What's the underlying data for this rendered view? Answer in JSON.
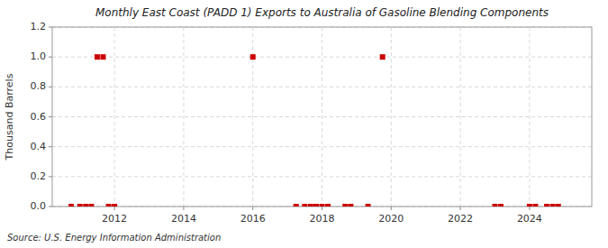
{
  "chart_data": {
    "type": "scatter",
    "title": "Monthly East Coast (PADD 1) Exports to Australia of Gasoline Blending Components",
    "ylabel": "Thousand Barrels",
    "annotations": [
      "Source: U.S. Energy Information Administration"
    ],
    "color": "#cc0000",
    "marker": "square",
    "grid": true,
    "xlim": [
      2010.2,
      2025.8
    ],
    "xticks": [
      2012,
      2014,
      2016,
      2018,
      2020,
      2022,
      2024
    ],
    "ylim": [
      0,
      1.2
    ],
    "yticks": [
      {
        "value": 0,
        "label": "0.0"
      },
      0.2,
      0.4,
      0.6,
      0.8,
      {
        "value": 1,
        "label": "1.0"
      },
      1.2
    ],
    "x": [
      2010.75,
      2011.0,
      2011.17,
      2011.33,
      2011.5,
      2011.67,
      2011.83,
      2012.0,
      2016.0,
      2017.25,
      2017.5,
      2017.67,
      2017.83,
      2018.0,
      2018.17,
      2018.67,
      2018.83,
      2019.33,
      2019.75,
      2023.0,
      2023.17,
      2024.0,
      2024.17,
      2024.5,
      2024.67,
      2024.83
    ],
    "values": [
      0.0,
      0.0,
      0.0,
      0.0,
      1.0,
      1.0,
      0.0,
      0.0,
      1.0,
      0.0,
      0.0,
      0.0,
      0.0,
      0.0,
      0.0,
      0.0,
      0.0,
      0.0,
      1.0,
      0.0,
      0.0,
      0.0,
      0.0,
      0.0,
      0.0,
      0.0
    ]
  }
}
